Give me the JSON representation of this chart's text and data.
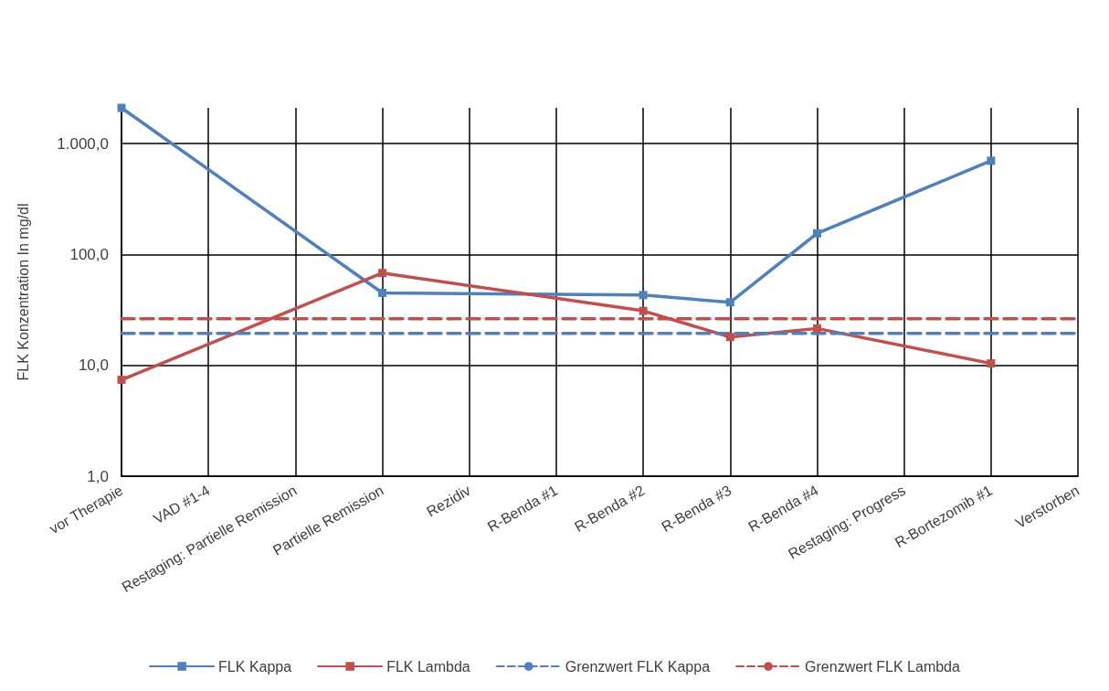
{
  "chart_data": {
    "type": "line",
    "ylabel": "FLK Konzentration In mg/dl",
    "categories": [
      "vor Therapie",
      "VAD #1-4",
      "Restaging: Partielle Remission",
      "Partielle Remission",
      "Rezidiv",
      "R-Benda #1",
      "R-Benda #2",
      "R-Benda #3",
      "R-Benda #4",
      "Restaging: Progress",
      "R-Bortezomib #1",
      "Verstorben"
    ],
    "series": [
      {
        "name": "FLK Kappa",
        "color": "#4f81bd",
        "marker": "square",
        "line_style": "solid",
        "values": [
          2100,
          null,
          null,
          45,
          null,
          null,
          43,
          37,
          155,
          null,
          700,
          null
        ]
      },
      {
        "name": "FLK Lambda",
        "color": "#c0504d",
        "marker": "square",
        "line_style": "solid",
        "values": [
          7.4,
          null,
          null,
          68,
          null,
          null,
          31,
          18,
          21.5,
          null,
          10.4,
          null
        ]
      },
      {
        "name": "Grenzwert FLK Kappa",
        "color": "#4f81bd",
        "marker": "none",
        "line_style": "dashed",
        "values": [
          19.4,
          19.4,
          19.4,
          19.4,
          19.4,
          19.4,
          19.4,
          19.4,
          19.4,
          19.4,
          19.4,
          19.4
        ]
      },
      {
        "name": "Grenzwert FLK Lambda",
        "color": "#c0504d",
        "marker": "none",
        "line_style": "dashed",
        "values": [
          26.3,
          26.3,
          26.3,
          26.3,
          26.3,
          26.3,
          26.3,
          26.3,
          26.3,
          26.3,
          26.3,
          26.3
        ]
      }
    ],
    "log": "y",
    "ylim": [
      1,
      2100
    ],
    "yticks": [
      {
        "value": 1,
        "label": "1,0"
      },
      {
        "value": 10,
        "label": "10,0"
      },
      {
        "value": 100,
        "label": "100,0"
      },
      {
        "value": 1000,
        "label": "1.000,0"
      }
    ],
    "grid": true,
    "legend": "bottom"
  }
}
